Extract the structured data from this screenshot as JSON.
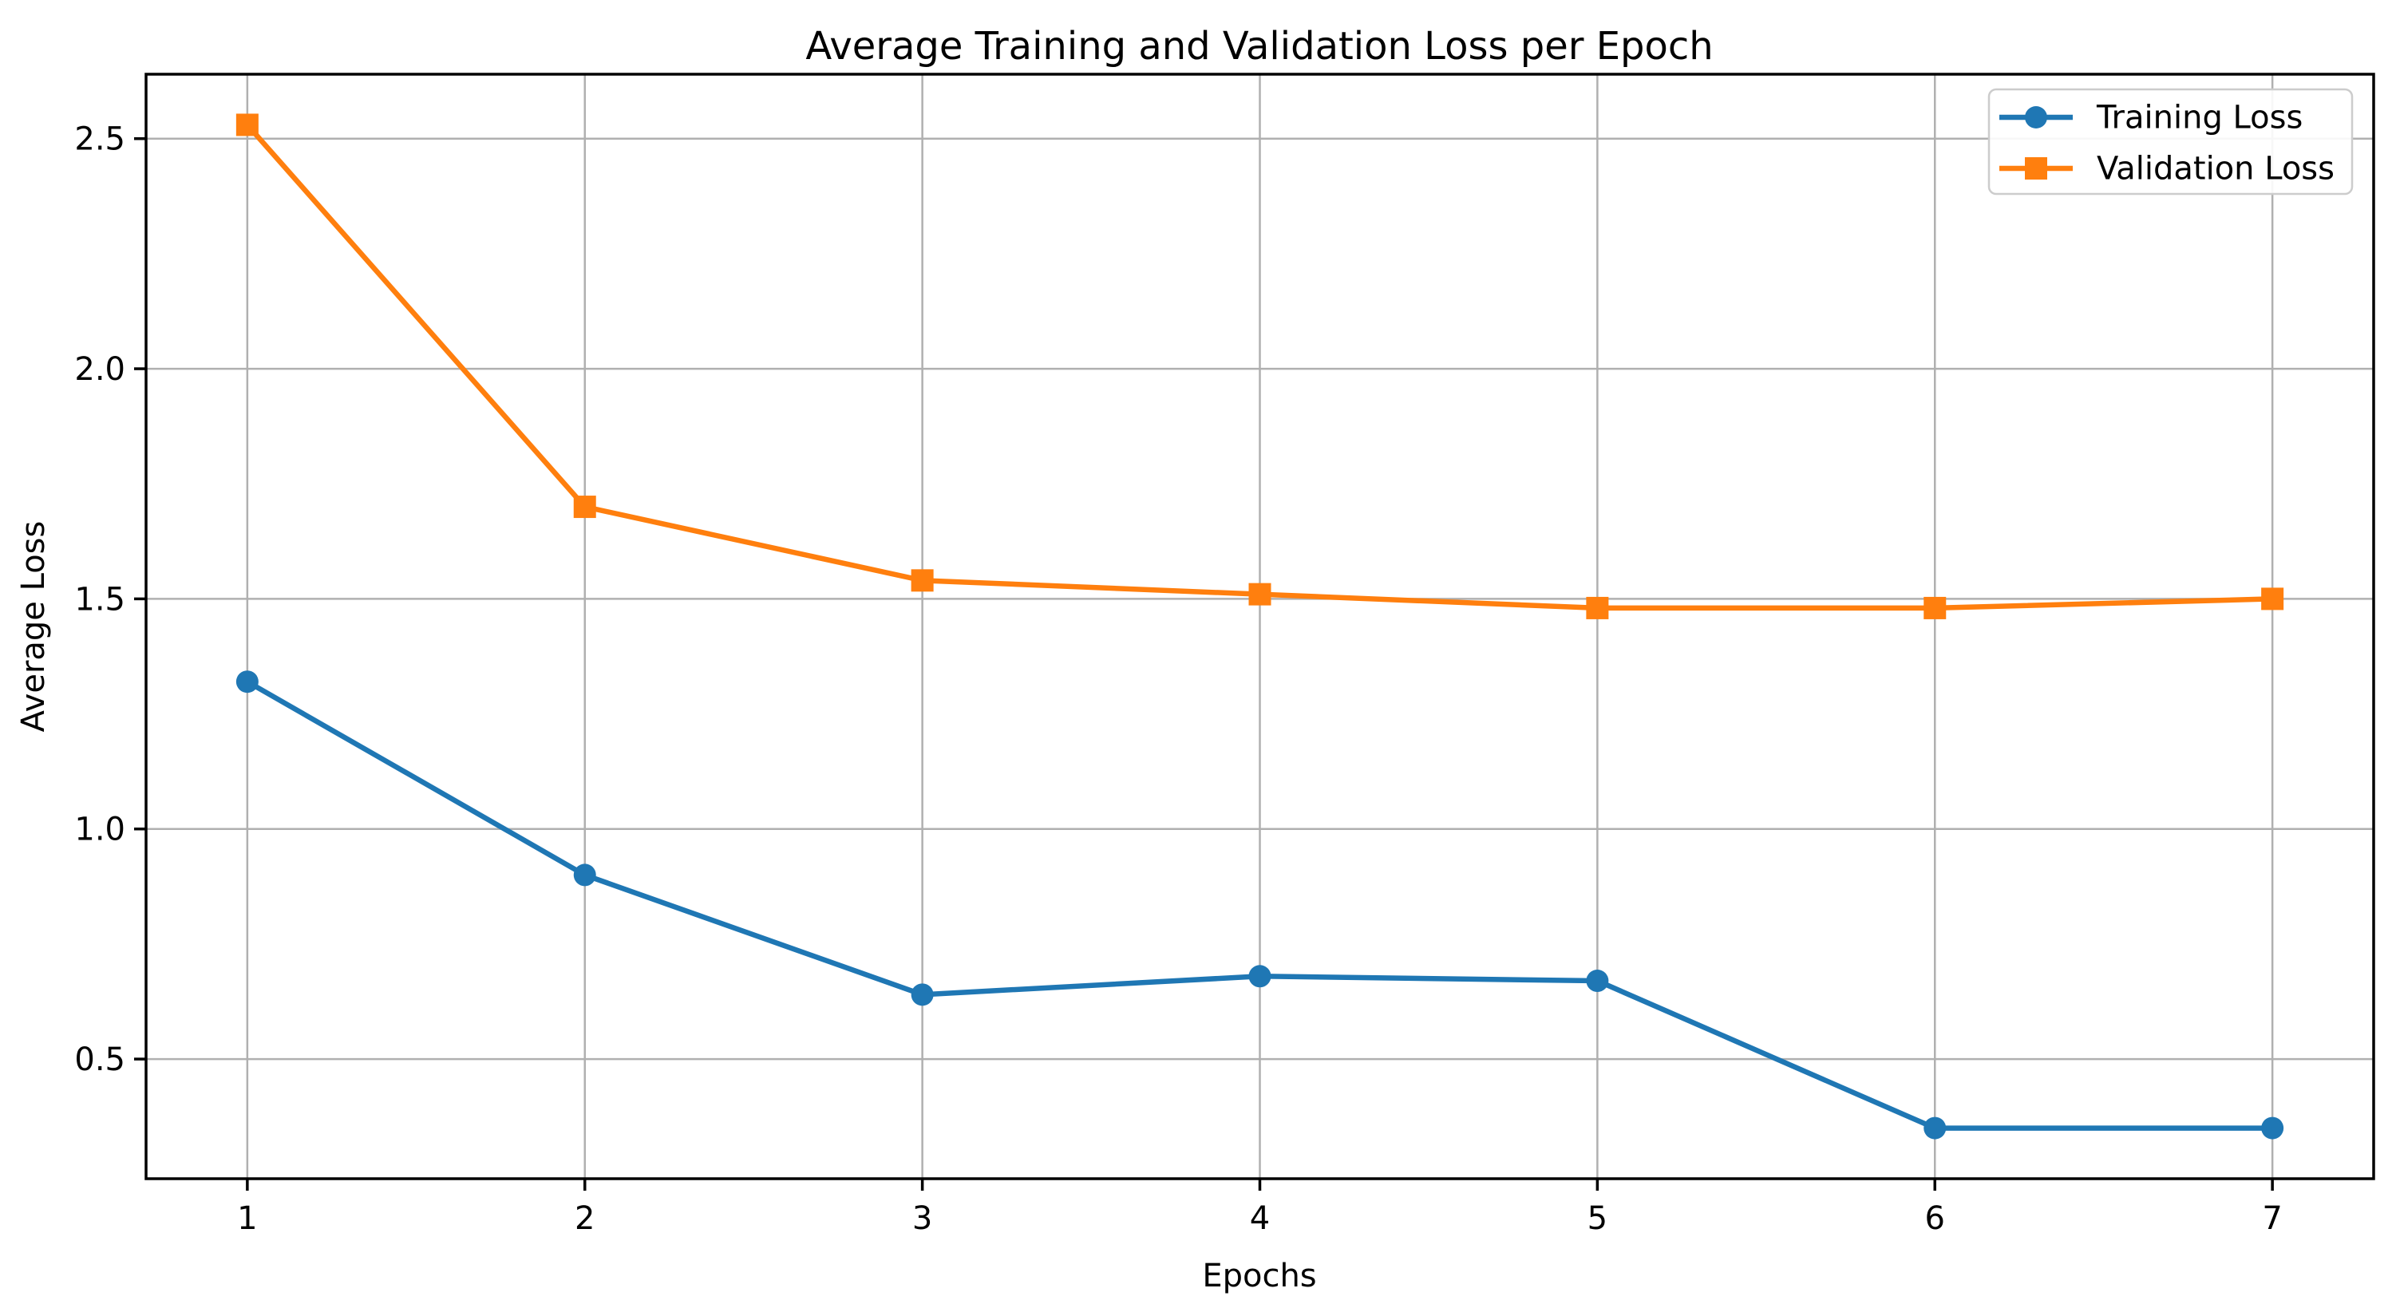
{
  "chart_data": {
    "type": "line",
    "title": "Average Training and Validation Loss per Epoch",
    "xlabel": "Epochs",
    "ylabel": "Average Loss",
    "x": [
      1,
      2,
      3,
      4,
      5,
      6,
      7
    ],
    "series": [
      {
        "name": "Training Loss",
        "color": "#1f77b4",
        "marker": "circle",
        "values": [
          1.32,
          0.9,
          0.64,
          0.68,
          0.67,
          0.35,
          0.35
        ]
      },
      {
        "name": "Validation Loss",
        "color": "#ff7f0e",
        "marker": "square",
        "values": [
          2.53,
          1.7,
          1.54,
          1.51,
          1.48,
          1.48,
          1.5
        ]
      }
    ],
    "xticks": [
      1,
      2,
      3,
      4,
      5,
      6,
      7
    ],
    "yticks": [
      0.5,
      1.0,
      1.5,
      2.0,
      2.5
    ],
    "xlim": [
      0.7,
      7.3
    ],
    "ylim": [
      0.24,
      2.64
    ],
    "grid": true,
    "legend_position": "upper right",
    "colors": {
      "grid": "#b0b0b0",
      "spine": "#000000",
      "legend_border": "#cccccc",
      "background": "#ffffff"
    }
  }
}
